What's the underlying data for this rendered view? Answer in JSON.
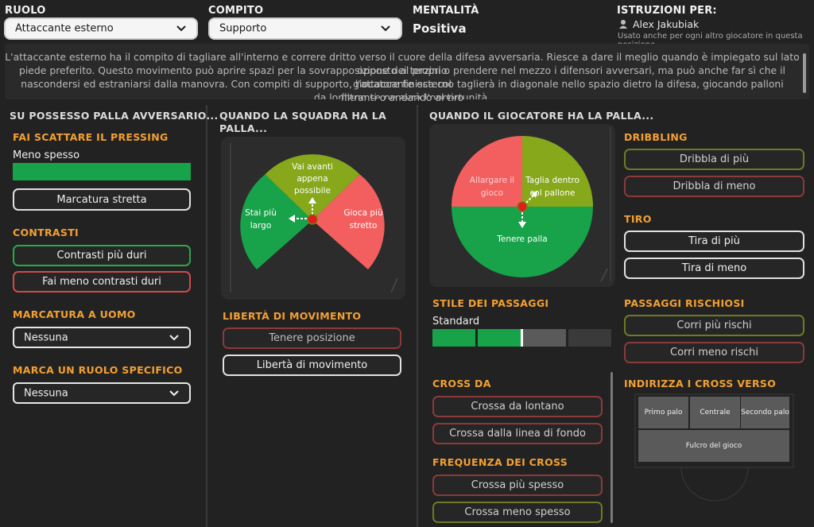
{
  "header": {
    "ruolo_label": "RUOLO",
    "ruolo_value": "Attaccante esterno",
    "compito_label": "COMPITO",
    "compito_value": "Supporto",
    "mentalita_label": "MENTALITÀ",
    "mentalita_value": "Positiva",
    "istruzioni_label": "ISTRUZIONI PER:",
    "player_name": "Alex Jakubiak",
    "player_note": "Usato anche per ogni altro giocatore in questa posizione"
  },
  "description": {
    "line1": "L'attaccante esterno ha il compito di tagliare all'interno e correre dritto verso il cuore della difesa avversaria. Riesce a dare il meglio quando è impiegato sul lato opposto al proprio",
    "line2": "piede preferito. Questo movimento può aprire spazi per la sovrapposizione dei terzini o prendere nel mezzo i difensori avversari, ma può anche far sì che il giocatore finisca col",
    "line3": "nascondersi ed estraniarsi dalla manovra. Con compiti di supporto, l'attaccante esterno taglierà in diagonale nello spazio dietro la difesa, giocando palloni filtranti o andando al tiro",
    "line4": "da lontano se ne avrà l'opportunità."
  },
  "col1": {
    "title": "SU POSSESSO PALLA AVVERSARIO...",
    "pressing_title": "FAI SCATTARE IL PRESSING",
    "pressing_value": "Meno spesso",
    "pressing_level": 1.0,
    "marcatura_stretta": "Marcatura stretta",
    "contrasti_title": "CONTRASTI",
    "contrasti_duri": "Contrasti più duri",
    "contrasti_meno": "Fai meno contrasti duri",
    "uomo_title": "MARCATURA A UOMO",
    "uomo_value": "Nessuna",
    "ruolo_title": "MARCA UN RUOLO SPECIFICO",
    "ruolo_value": "Nessuna"
  },
  "col2": {
    "title_line1": "QUANDO LA SQUADRA HA LA",
    "title_line2": "PALLA...",
    "wheel_top_1": "Vai avanti",
    "wheel_top_2": "appena",
    "wheel_top_3": "possibile",
    "wheel_left_1": "Stai più",
    "wheel_left_2": "largo",
    "wheel_right_1": "Gioca più",
    "wheel_right_2": "stretto",
    "liberta_title": "LIBERTÀ DI MOVIMENTO",
    "tenere_posizione": "Tenere posizione",
    "liberta_movimento": "Libertà di movimento"
  },
  "col3": {
    "title": "QUANDO IL GIOCATORE HA LA PALLA...",
    "pie_left_1": "Allargare il",
    "pie_left_2": "gioco",
    "pie_right_1": "Taglia dentro",
    "pie_right_2": "col pallone",
    "pie_bottom": "Tenere palla",
    "passaggi_title": "STILE DEI PASSAGGI",
    "passaggi_value": "Standard",
    "passaggi_level": 0.5,
    "cross_da_title": "CROSS DA",
    "cross_lontano": "Crossa da lontano",
    "cross_fondo": "Crossa dalla linea di fondo",
    "freq_title": "FREQUENZA DEI CROSS",
    "cross_piu": "Crossa più spesso",
    "cross_meno": "Crossa meno spesso"
  },
  "col4": {
    "dribbling_title": "DRIBBLING",
    "dribbla_piu": "Dribbla di più",
    "dribbla_meno": "Dribbla di meno",
    "tiro_title": "TIRO",
    "tira_piu": "Tira di più",
    "tira_meno": "Tira di meno",
    "rischi_title": "PASSAGGI RISCHIOSI",
    "rischi_piu": "Corri più rischi",
    "rischi_meno": "Corri meno rischi",
    "indirizza_title": "INDIRIZZA I CROSS VERSO",
    "primo_palo": "Primo palo",
    "centrale": "Centrale",
    "secondo_palo": "Secondo palo",
    "fulcro": "Fulcro del gioco"
  },
  "colors": {
    "accent_orange": "#f2a033",
    "green": "#18a34a",
    "red": "#f35f5f",
    "olive": "#86a81a"
  }
}
